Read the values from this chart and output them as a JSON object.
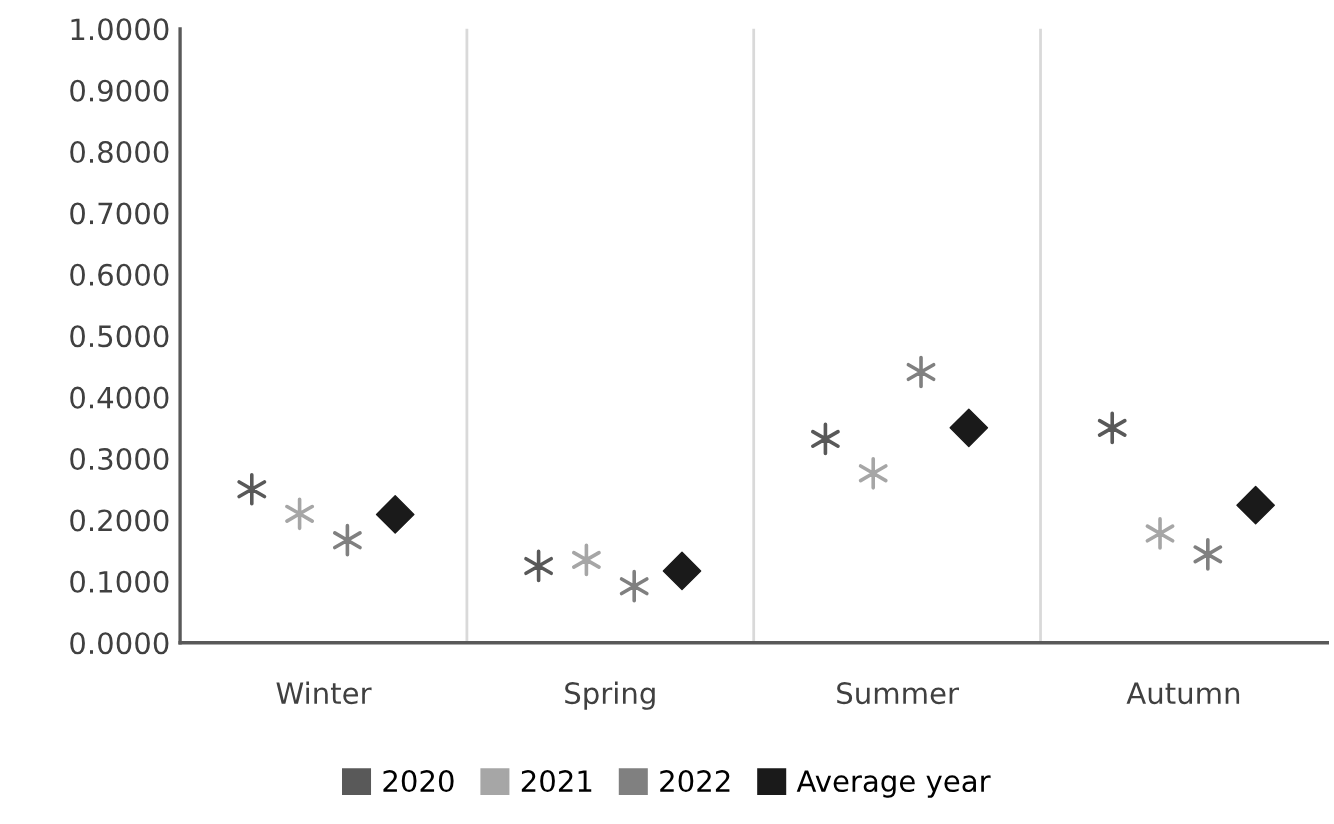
{
  "chart_data": {
    "type": "scatter",
    "categories": [
      "Winter",
      "Spring",
      "Summer",
      "Autumn"
    ],
    "series": [
      {
        "name": "2020",
        "color": "#595959",
        "marker": "cross",
        "values": [
          0.25,
          0.125,
          0.332,
          0.35
        ]
      },
      {
        "name": "2021",
        "color": "#a6a6a6",
        "marker": "cross",
        "values": [
          0.21,
          0.135,
          0.276,
          0.178
        ]
      },
      {
        "name": "2022",
        "color": "#808080",
        "marker": "cross",
        "values": [
          0.167,
          0.092,
          0.441,
          0.144
        ]
      },
      {
        "name": "Average year",
        "color": "#1a1a1a",
        "marker": "diamond",
        "values": [
          0.209,
          0.117,
          0.35,
          0.224
        ]
      }
    ],
    "ylim": [
      0,
      1
    ],
    "yticks": [
      {
        "value": 0,
        "label": "0.0000"
      },
      {
        "value": 0.1,
        "label": "0.1000"
      },
      {
        "value": 0.2,
        "label": "0.2000"
      },
      {
        "value": 0.3,
        "label": "0.3000"
      },
      {
        "value": 0.4,
        "label": "0.4000"
      },
      {
        "value": 0.5,
        "label": "0.5000"
      },
      {
        "value": 0.6,
        "label": "0.6000"
      },
      {
        "value": 0.7,
        "label": "0.7000"
      },
      {
        "value": 0.8,
        "label": "0.8000"
      },
      {
        "value": 0.9,
        "label": "0.9000"
      },
      {
        "value": 1,
        "label": "1.0000"
      }
    ],
    "grid": "x",
    "legend": "bottom"
  }
}
